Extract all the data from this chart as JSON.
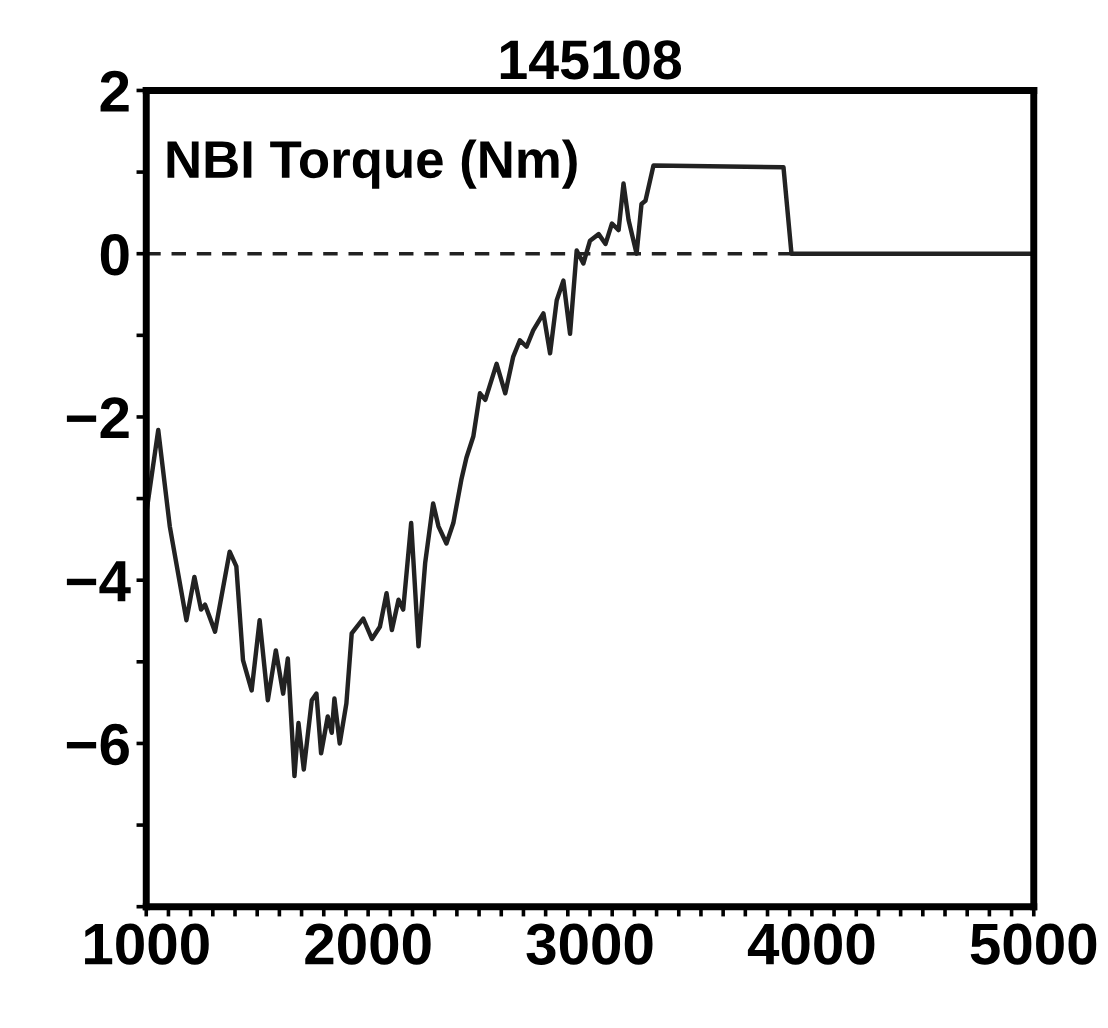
{
  "chart_data": {
    "type": "line",
    "title": "145108",
    "annotations": [
      "NBI Torque (Nm)"
    ],
    "x": [
      1000,
      1054,
      1106,
      1181,
      1217,
      1247,
      1265,
      1310,
      1376,
      1406,
      1436,
      1475,
      1511,
      1548,
      1584,
      1617,
      1638,
      1668,
      1686,
      1710,
      1746,
      1767,
      1788,
      1818,
      1836,
      1848,
      1872,
      1902,
      1926,
      1978,
      2017,
      2053,
      2083,
      2107,
      2137,
      2158,
      2194,
      2227,
      2257,
      2293,
      2317,
      2353,
      2384,
      2420,
      2443,
      2474,
      2504,
      2528,
      2579,
      2618,
      2654,
      2684,
      2714,
      2744,
      2790,
      2820,
      2850,
      2880,
      2910,
      2940,
      2970,
      3000,
      3039,
      3070,
      3099,
      3129,
      3151,
      3174,
      3210,
      3232,
      3250,
      3286,
      3872,
      3908,
      5000
    ],
    "series": [
      {
        "color": "#222222",
        "values": [
          -3.18,
          -2.16,
          -3.34,
          -4.49,
          -3.96,
          -4.36,
          -4.3,
          -4.63,
          -3.65,
          -3.83,
          -4.98,
          -5.35,
          -4.49,
          -5.47,
          -4.86,
          -5.39,
          -4.96,
          -6.4,
          -5.75,
          -6.32,
          -5.47,
          -5.39,
          -6.12,
          -5.67,
          -5.87,
          -5.45,
          -6.0,
          -5.51,
          -4.65,
          -4.47,
          -4.72,
          -4.57,
          -4.16,
          -4.61,
          -4.24,
          -4.36,
          -3.3,
          -4.81,
          -3.79,
          -3.06,
          -3.34,
          -3.55,
          -3.3,
          -2.77,
          -2.5,
          -2.24,
          -1.71,
          -1.79,
          -1.35,
          -1.71,
          -1.26,
          -1.06,
          -1.14,
          -0.94,
          -0.73,
          -1.22,
          -0.57,
          -0.33,
          -0.98,
          0.04,
          -0.12,
          0.16,
          0.24,
          0.12,
          0.37,
          0.29,
          0.86,
          0.41,
          0.0,
          0.61,
          0.65,
          1.08,
          1.06,
          0.0,
          0.0
        ]
      }
    ],
    "xlim": [
      1000,
      5000
    ],
    "ylim": [
      -8,
      2
    ],
    "xticks": [
      1000,
      {
        "value": 1100,
        "label": null
      },
      {
        "value": 1200,
        "label": null
      },
      {
        "value": 1300,
        "label": null
      },
      {
        "value": 1400,
        "label": null
      },
      {
        "value": 1500,
        "label": null
      },
      {
        "value": 1600,
        "label": null
      },
      {
        "value": 1700,
        "label": null
      },
      {
        "value": 1800,
        "label": null
      },
      {
        "value": 1900,
        "label": null
      },
      2000,
      {
        "value": 2100,
        "label": null
      },
      {
        "value": 2200,
        "label": null
      },
      {
        "value": 2300,
        "label": null
      },
      {
        "value": 2400,
        "label": null
      },
      {
        "value": 2500,
        "label": null
      },
      {
        "value": 2600,
        "label": null
      },
      {
        "value": 2700,
        "label": null
      },
      {
        "value": 2800,
        "label": null
      },
      {
        "value": 2900,
        "label": null
      },
      3000,
      {
        "value": 3100,
        "label": null
      },
      {
        "value": 3200,
        "label": null
      },
      {
        "value": 3300,
        "label": null
      },
      {
        "value": 3400,
        "label": null
      },
      {
        "value": 3500,
        "label": null
      },
      {
        "value": 3600,
        "label": null
      },
      {
        "value": 3700,
        "label": null
      },
      {
        "value": 3800,
        "label": null
      },
      {
        "value": 3900,
        "label": null
      },
      4000,
      {
        "value": 4100,
        "label": null
      },
      {
        "value": 4200,
        "label": null
      },
      {
        "value": 4300,
        "label": null
      },
      {
        "value": 4400,
        "label": null
      },
      {
        "value": 4500,
        "label": null
      },
      {
        "value": 4600,
        "label": null
      },
      {
        "value": 4700,
        "label": null
      },
      {
        "value": 4800,
        "label": null
      },
      {
        "value": 4900,
        "label": null
      },
      5000
    ],
    "yticks": [
      {
        "value": -8,
        "label": null
      },
      {
        "value": -7,
        "label": null
      },
      {
        "value": -6,
        "label": "−6"
      },
      {
        "value": -5,
        "label": null
      },
      {
        "value": -4,
        "label": "−4"
      },
      {
        "value": -3,
        "label": null
      },
      {
        "value": -2,
        "label": "−2"
      },
      {
        "value": -1,
        "label": null
      },
      0,
      {
        "value": 1,
        "label": null
      },
      2
    ],
    "ref_lines": [
      {
        "axis": "y",
        "value": 0,
        "color": "#222222",
        "line_style": "dashed"
      }
    ],
    "grid": false,
    "legend": false,
    "marker": "none",
    "line_style": "solid"
  }
}
